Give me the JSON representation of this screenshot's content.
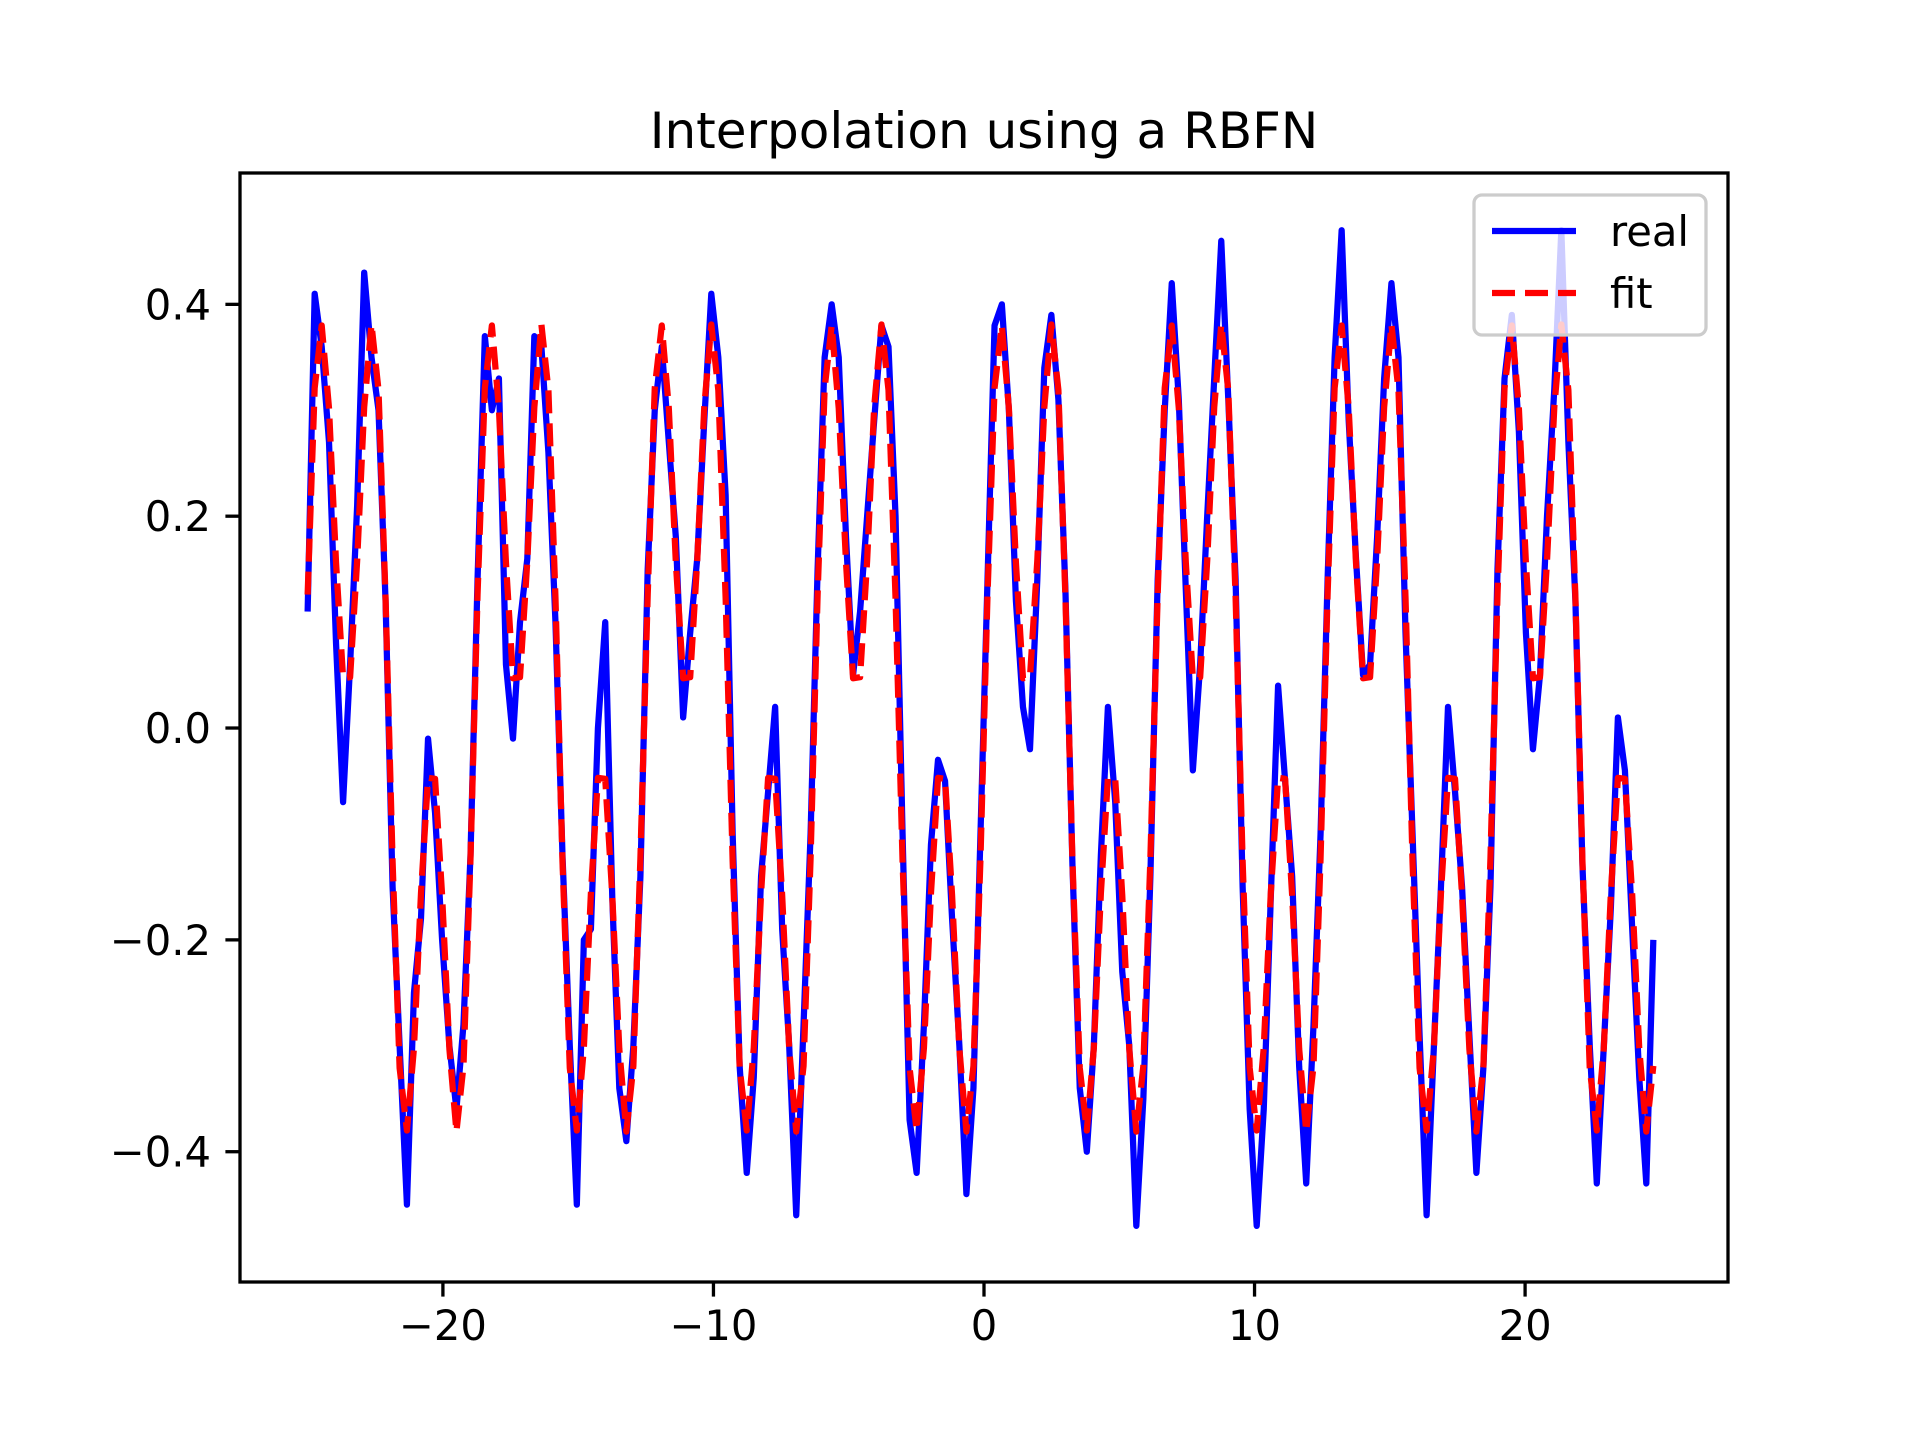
{
  "chart_data": {
    "type": "line",
    "title": "Interpolation using a RBFN",
    "x": [
      -25,
      -24.74,
      -24.48,
      -24.21,
      -23.95,
      -23.69,
      -23.43,
      -23.17,
      -22.91,
      -22.64,
      -22.38,
      -22.12,
      -21.86,
      -21.6,
      -21.33,
      -21.07,
      -20.81,
      -20.55,
      -20.29,
      -20.03,
      -19.76,
      -19.5,
      -19.24,
      -18.98,
      -18.72,
      -18.45,
      -18.19,
      -17.93,
      -17.67,
      -17.41,
      -17.15,
      -16.88,
      -16.62,
      -16.36,
      -16.1,
      -15.84,
      -15.58,
      -15.31,
      -15.05,
      -14.79,
      -14.53,
      -14.27,
      -14.0,
      -13.74,
      -13.48,
      -13.22,
      -12.96,
      -12.7,
      -12.43,
      -12.17,
      -11.91,
      -11.65,
      -11.39,
      -11.12,
      -10.86,
      -10.6,
      -10.34,
      -10.08,
      -9.82,
      -9.55,
      -9.29,
      -9.03,
      -8.77,
      -8.51,
      -8.24,
      -7.98,
      -7.72,
      -7.46,
      -7.2,
      -6.94,
      -6.67,
      -6.41,
      -6.15,
      -5.89,
      -5.63,
      -5.37,
      -5.1,
      -4.84,
      -4.58,
      -4.32,
      -4.06,
      -3.79,
      -3.53,
      -3.27,
      -3.01,
      -2.75,
      -2.49,
      -2.22,
      -1.96,
      -1.7,
      -1.44,
      -1.18,
      -0.91,
      -0.65,
      -0.39,
      -0.13,
      0.13,
      0.39,
      0.66,
      0.92,
      1.18,
      1.44,
      1.7,
      1.97,
      2.23,
      2.49,
      2.75,
      3.01,
      3.27,
      3.54,
      3.8,
      4.06,
      4.32,
      4.58,
      4.85,
      5.11,
      5.37,
      5.63,
      5.89,
      6.15,
      6.42,
      6.68,
      6.94,
      7.2,
      7.46,
      7.72,
      7.99,
      8.25,
      8.51,
      8.77,
      9.03,
      9.3,
      9.56,
      9.82,
      10.08,
      10.34,
      10.6,
      10.87,
      11.13,
      11.39,
      11.65,
      11.91,
      12.18,
      12.44,
      12.7,
      12.96,
      13.22,
      13.48,
      13.75,
      14.01,
      14.27,
      14.53,
      14.79,
      15.06,
      15.32,
      15.58,
      15.84,
      16.1,
      16.36,
      16.63,
      16.89,
      17.15,
      17.41,
      17.67,
      17.94,
      18.2,
      18.46,
      18.72,
      18.98,
      19.24,
      19.51,
      19.77,
      20.03,
      20.29,
      20.55,
      20.81,
      21.08,
      21.34,
      21.6,
      21.86,
      22.12,
      22.39,
      22.65,
      22.91,
      23.17,
      23.43,
      23.69,
      23.96,
      24.22,
      24.48,
      24.74
    ],
    "series": [
      {
        "name": "real",
        "color": "#0000ff",
        "linestyle": "solid",
        "values": [
          0.11,
          0.41,
          0.36,
          0.27,
          0.08,
          -0.07,
          0.06,
          0.21,
          0.43,
          0.35,
          0.3,
          0.12,
          -0.15,
          -0.3,
          -0.45,
          -0.25,
          -0.18,
          -0.01,
          -0.08,
          -0.2,
          -0.3,
          -0.36,
          -0.28,
          -0.12,
          0.14,
          0.37,
          0.3,
          0.33,
          0.06,
          -0.01,
          0.1,
          0.16,
          0.37,
          0.36,
          0.26,
          0.1,
          -0.12,
          -0.3,
          -0.45,
          -0.2,
          -0.19,
          0.0,
          0.1,
          -0.16,
          -0.34,
          -0.39,
          -0.3,
          -0.14,
          0.15,
          0.3,
          0.36,
          0.27,
          0.18,
          0.01,
          0.09,
          0.16,
          0.29,
          0.41,
          0.35,
          0.22,
          -0.1,
          -0.32,
          -0.42,
          -0.33,
          -0.14,
          -0.06,
          0.02,
          -0.19,
          -0.3,
          -0.46,
          -0.28,
          -0.1,
          0.15,
          0.35,
          0.4,
          0.35,
          0.18,
          0.05,
          0.11,
          0.2,
          0.29,
          0.38,
          0.36,
          0.2,
          -0.1,
          -0.37,
          -0.42,
          -0.28,
          -0.11,
          -0.03,
          -0.05,
          -0.18,
          -0.3,
          -0.44,
          -0.34,
          -0.1,
          0.14,
          0.38,
          0.4,
          0.3,
          0.12,
          0.02,
          -0.02,
          0.14,
          0.34,
          0.39,
          0.31,
          0.13,
          -0.13,
          -0.34,
          -0.4,
          -0.3,
          -0.12,
          0.02,
          -0.07,
          -0.23,
          -0.3,
          -0.47,
          -0.35,
          -0.14,
          0.14,
          0.3,
          0.42,
          0.31,
          0.13,
          -0.04,
          0.06,
          0.2,
          0.33,
          0.46,
          0.31,
          0.14,
          -0.15,
          -0.36,
          -0.47,
          -0.36,
          -0.16,
          0.04,
          -0.05,
          -0.14,
          -0.32,
          -0.43,
          -0.28,
          -0.1,
          0.14,
          0.35,
          0.47,
          0.29,
          0.16,
          0.05,
          0.06,
          0.18,
          0.33,
          0.42,
          0.35,
          0.09,
          -0.1,
          -0.29,
          -0.46,
          -0.3,
          -0.15,
          0.02,
          -0.06,
          -0.15,
          -0.29,
          -0.42,
          -0.32,
          -0.15,
          0.15,
          0.33,
          0.39,
          0.28,
          0.09,
          -0.02,
          0.05,
          0.2,
          0.32,
          0.47,
          0.27,
          0.12,
          -0.13,
          -0.3,
          -0.43,
          -0.3,
          -0.17,
          0.01,
          -0.04,
          -0.19,
          -0.33,
          -0.43,
          -0.2
        ]
      },
      {
        "name": "fit",
        "color": "#ff0000",
        "linestyle": "dashed",
        "values": [
          0.126,
          0.321,
          0.38,
          0.302,
          0.156,
          0.047,
          0.048,
          0.158,
          0.303,
          0.381,
          0.319,
          0.123,
          -0.126,
          -0.321,
          -0.38,
          -0.302,
          -0.156,
          -0.047,
          -0.048,
          -0.158,
          -0.303,
          -0.381,
          -0.319,
          -0.123,
          0.126,
          0.321,
          0.38,
          0.302,
          0.156,
          0.047,
          0.048,
          0.158,
          0.303,
          0.381,
          0.319,
          0.123,
          -0.126,
          -0.321,
          -0.38,
          -0.302,
          -0.156,
          -0.047,
          -0.048,
          -0.158,
          -0.303,
          -0.381,
          -0.319,
          -0.123,
          0.126,
          0.321,
          0.38,
          0.302,
          0.156,
          0.047,
          0.048,
          0.158,
          0.303,
          0.381,
          0.319,
          0.123,
          -0.126,
          -0.321,
          -0.38,
          -0.302,
          -0.156,
          -0.047,
          -0.048,
          -0.158,
          -0.303,
          -0.381,
          -0.319,
          -0.123,
          0.126,
          0.321,
          0.38,
          0.302,
          0.156,
          0.047,
          0.048,
          0.158,
          0.303,
          0.381,
          0.319,
          0.123,
          -0.126,
          -0.321,
          -0.38,
          -0.302,
          -0.156,
          -0.047,
          -0.048,
          -0.158,
          -0.303,
          -0.381,
          -0.319,
          -0.123,
          0.126,
          0.321,
          0.38,
          0.302,
          0.156,
          0.047,
          0.048,
          0.158,
          0.303,
          0.381,
          0.319,
          0.123,
          -0.126,
          -0.321,
          -0.38,
          -0.302,
          -0.156,
          -0.047,
          -0.048,
          -0.158,
          -0.303,
          -0.381,
          -0.319,
          -0.123,
          0.126,
          0.321,
          0.38,
          0.302,
          0.156,
          0.047,
          0.048,
          0.158,
          0.303,
          0.381,
          0.319,
          0.123,
          -0.126,
          -0.321,
          -0.38,
          -0.302,
          -0.156,
          -0.047,
          -0.048,
          -0.158,
          -0.303,
          -0.381,
          -0.319,
          -0.123,
          0.126,
          0.321,
          0.38,
          0.302,
          0.156,
          0.047,
          0.048,
          0.158,
          0.303,
          0.381,
          0.319,
          0.123,
          -0.126,
          -0.321,
          -0.38,
          -0.302,
          -0.156,
          -0.047,
          -0.048,
          -0.158,
          -0.303,
          -0.381,
          -0.319,
          -0.123,
          0.126,
          0.321,
          0.38,
          0.302,
          0.156,
          0.047,
          0.048,
          0.158,
          0.303,
          0.381,
          0.319,
          0.123,
          -0.126,
          -0.321,
          -0.38,
          -0.302,
          -0.156,
          -0.047,
          -0.048,
          -0.158,
          -0.303,
          -0.381,
          -0.319
        ]
      }
    ],
    "xlim": [
      -27.5,
      27.5
    ],
    "xticks": [
      {
        "value": -20,
        "label": "−20"
      },
      {
        "value": -10,
        "label": "−10"
      },
      0,
      10,
      20
    ],
    "ylim": [
      -0.523,
      0.524
    ],
    "yticks": [
      {
        "value": -0.4,
        "label": "−0.4"
      },
      {
        "value": -0.2,
        "label": "−0.2"
      },
      {
        "value": 0,
        "label": "0.0"
      },
      0.2,
      0.4
    ],
    "grid": false,
    "legend": "upper right"
  }
}
